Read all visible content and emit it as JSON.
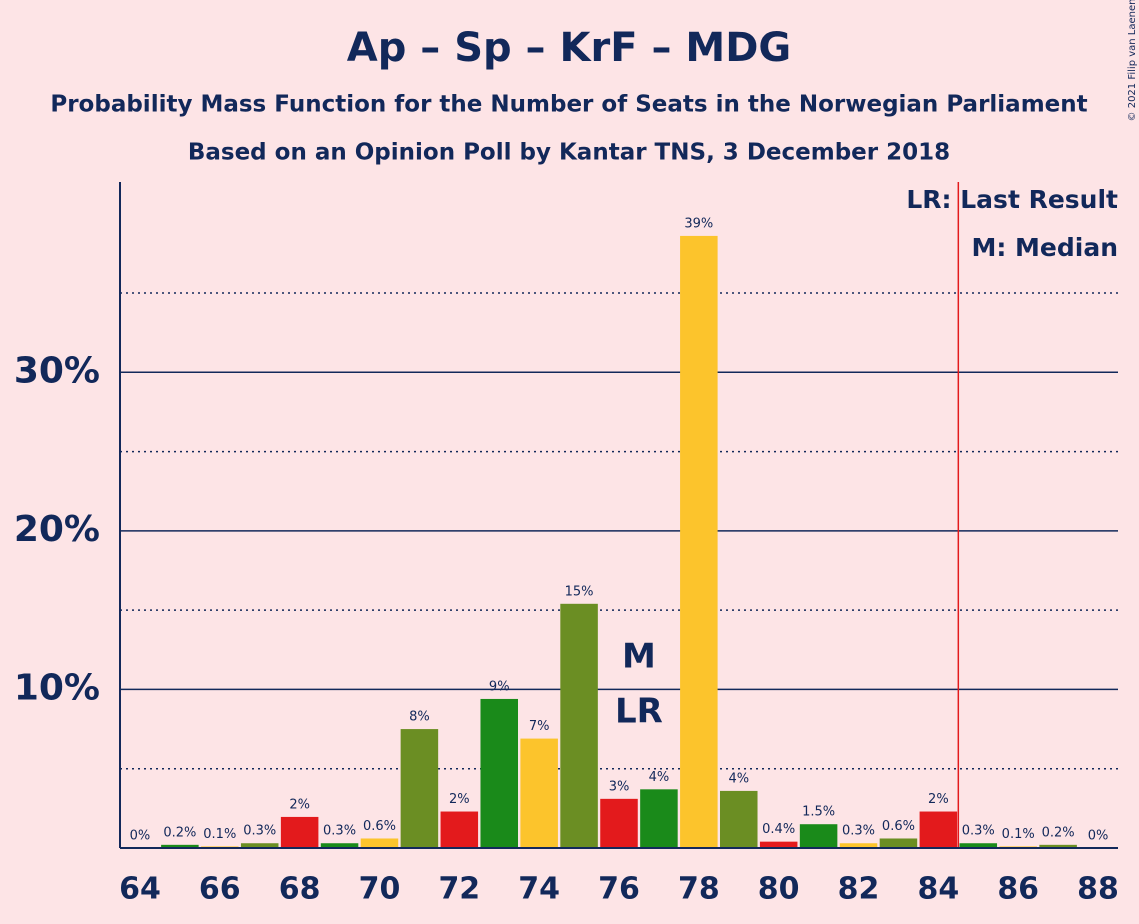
{
  "chart_data": {
    "type": "bar",
    "title": "Ap – Sp – KrF – MDG",
    "subtitle": "Probability Mass Function for the Number of Seats in the Norwegian Parliament",
    "subtitle2": "Based on an Opinion Poll by Kantar TNS, 3 December 2018",
    "copyright": "© 2021 Filip van Laenen",
    "x": [
      64,
      65,
      66,
      67,
      68,
      69,
      70,
      71,
      72,
      73,
      74,
      75,
      76,
      77,
      78,
      79,
      80,
      81,
      82,
      83,
      84,
      85,
      86,
      87,
      88
    ],
    "values": [
      0,
      0.2,
      0.1,
      0.3,
      1.96,
      0.3,
      0.6,
      7.5,
      2.3,
      9.4,
      6.9,
      15.4,
      3.1,
      3.7,
      38.6,
      3.6,
      0.4,
      1.5,
      0.3,
      0.6,
      2.3,
      0.3,
      0.1,
      0.2,
      0
    ],
    "value_labels": [
      "0%",
      "0.2%",
      "0.1%",
      "0.3%",
      "2%",
      "0.3%",
      "0.6%",
      "8%",
      "2%",
      "9%",
      "7%",
      "15%",
      "3%",
      "4%",
      "39%",
      "4%",
      "0.4%",
      "1.5%",
      "0.3%",
      "0.6%",
      "2%",
      "0.3%",
      "0.1%",
      "0.2%",
      "0%"
    ],
    "colors": [
      "#e31a1c",
      "#1a8a1a",
      "#fcc42c",
      "#6b8e23"
    ],
    "xlim": [
      63.5,
      88.5
    ],
    "xticks": [
      64,
      66,
      68,
      70,
      72,
      74,
      76,
      78,
      80,
      82,
      84,
      86,
      88
    ],
    "ylim": [
      0,
      42
    ],
    "yticks": [
      {
        "value": 10,
        "label": "10%"
      },
      {
        "value": 20,
        "label": "20%"
      },
      {
        "value": 30,
        "label": "30%"
      }
    ],
    "minor_yticks": [
      5,
      15,
      25,
      35
    ],
    "grid": true,
    "median": {
      "x": 77,
      "text": "M"
    },
    "last_result": {
      "x": 77,
      "text": "LR"
    },
    "majority": 85,
    "majority_color": "#e31a1c",
    "legend": [
      "LR: Last Result",
      "M: Median"
    ]
  }
}
